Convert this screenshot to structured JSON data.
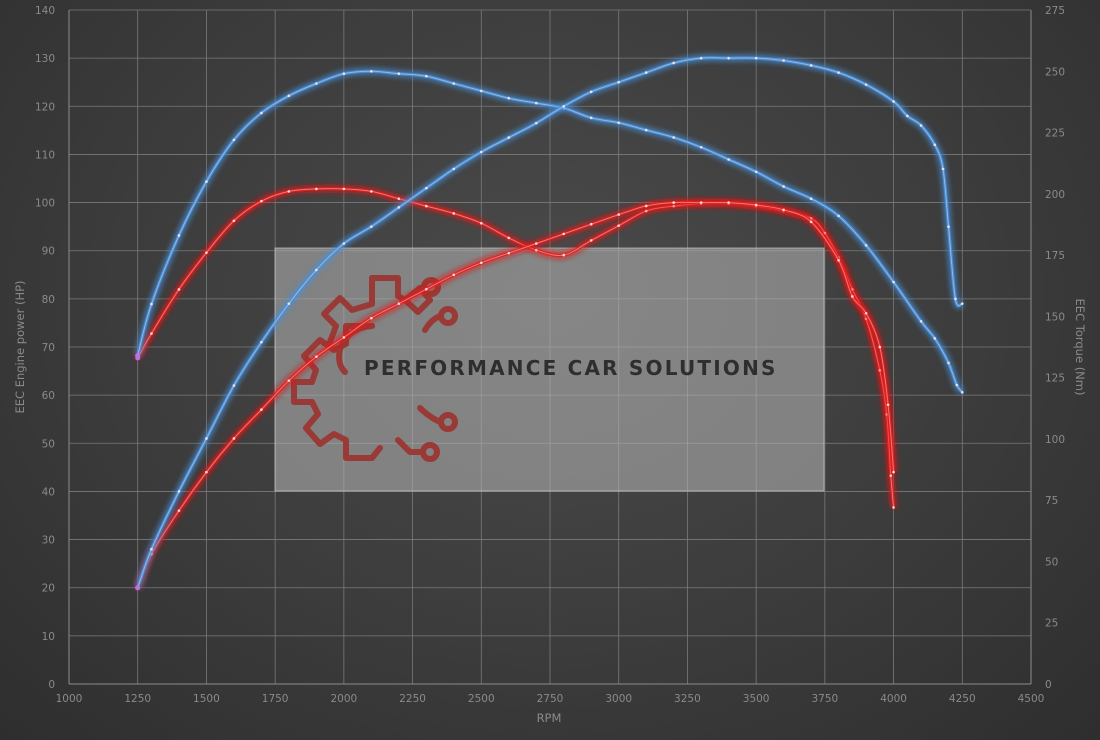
{
  "chart_data": {
    "type": "line",
    "title": "",
    "xlabel": "RPM",
    "ylabel": "EEC Engine power (HP)",
    "ylabel_right": "EEC Torque (Nm)",
    "xlim": [
      1000,
      4500
    ],
    "ylim": [
      0,
      140
    ],
    "ylim_right": [
      0,
      275
    ],
    "x_ticks": [
      1000,
      1250,
      1500,
      1750,
      2000,
      2250,
      2500,
      2750,
      3000,
      3250,
      3500,
      3750,
      4000,
      4250,
      4500
    ],
    "y_ticks": [
      0,
      10,
      20,
      30,
      40,
      50,
      60,
      70,
      80,
      90,
      100,
      110,
      120,
      130,
      140
    ],
    "y_right_ticks": [
      0,
      25,
      50,
      75,
      100,
      125,
      150,
      175,
      200,
      225,
      250,
      275
    ],
    "grid": true,
    "legend": "none",
    "series": [
      {
        "color": "#e02020",
        "axis": "right",
        "x": [
          1250,
          1300,
          1400,
          1500,
          1600,
          1700,
          1800,
          1900,
          2000,
          2100,
          2200,
          2300,
          2400,
          2500,
          2600,
          2700,
          2800,
          2900,
          3000,
          3100,
          3200,
          3300,
          3400,
          3500,
          3600,
          3700,
          3750,
          3800,
          3850,
          3900,
          3950,
          3975,
          3990,
          4000
        ],
        "y": [
          133,
          143,
          161,
          176,
          189,
          197,
          201,
          202,
          202,
          201,
          198,
          195,
          192,
          188,
          182,
          177,
          175,
          181,
          187,
          193,
          195,
          196,
          196,
          195,
          193,
          190,
          184,
          174,
          161,
          149,
          128,
          110,
          85,
          72
        ]
      },
      {
        "color": "#4a8fd8",
        "axis": "right",
        "x": [
          1250,
          1300,
          1400,
          1500,
          1600,
          1700,
          1800,
          1900,
          2000,
          2100,
          2200,
          2300,
          2400,
          2500,
          2600,
          2700,
          2800,
          2900,
          3000,
          3100,
          3200,
          3300,
          3400,
          3500,
          3600,
          3700,
          3800,
          3900,
          4000,
          4100,
          4150,
          4200,
          4230,
          4250
        ],
        "y": [
          134,
          155,
          183,
          205,
          222,
          233,
          240,
          245,
          249,
          250,
          249,
          248,
          245,
          242,
          239,
          237,
          235,
          231,
          229,
          226,
          223,
          219,
          214,
          209,
          203,
          198,
          191,
          179,
          164,
          148,
          141,
          131,
          122,
          119
        ]
      },
      {
        "color": "#e02020",
        "axis": "left",
        "x": [
          1250,
          1300,
          1400,
          1500,
          1600,
          1700,
          1800,
          1900,
          2000,
          2100,
          2200,
          2300,
          2400,
          2500,
          2600,
          2700,
          2800,
          2900,
          3000,
          3100,
          3200,
          3300,
          3400,
          3500,
          3600,
          3700,
          3800,
          3850,
          3900,
          3950,
          3980,
          4000
        ],
        "y": [
          20,
          27,
          36,
          44,
          51,
          57,
          63,
          68,
          72,
          76,
          79,
          82,
          85,
          87.5,
          89.5,
          91.5,
          93.5,
          95.5,
          97.5,
          99.3,
          100,
          100,
          100,
          99.5,
          98.5,
          96,
          88,
          80.5,
          77,
          70,
          58,
          44
        ]
      },
      {
        "color": "#4a8fd8",
        "axis": "left",
        "x": [
          1250,
          1300,
          1400,
          1500,
          1600,
          1700,
          1800,
          1900,
          2000,
          2100,
          2200,
          2300,
          2400,
          2500,
          2600,
          2700,
          2800,
          2900,
          3000,
          3100,
          3200,
          3300,
          3400,
          3500,
          3600,
          3700,
          3800,
          3900,
          4000,
          4050,
          4100,
          4150,
          4180,
          4200,
          4225,
          4250
        ],
        "y": [
          20,
          28,
          40,
          51,
          62,
          71,
          79,
          86,
          91.5,
          95,
          99,
          103,
          107,
          110.5,
          113.5,
          116.5,
          120,
          123,
          125,
          127,
          129,
          130,
          130,
          130,
          129.5,
          128.5,
          127,
          124.5,
          121,
          118,
          116,
          112,
          107,
          95,
          80,
          79
        ]
      }
    ],
    "watermark": {
      "text": "PERFORMANCE CAR SOLUTIONS",
      "logo": "gear-circuit-logo"
    }
  }
}
